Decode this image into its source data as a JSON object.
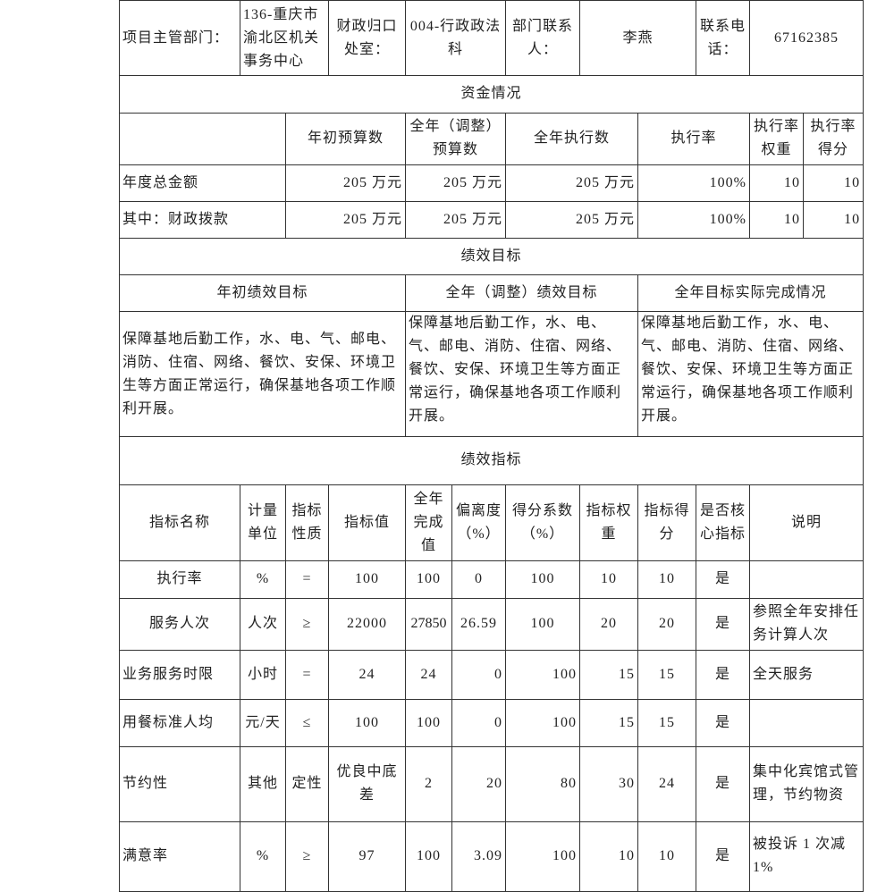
{
  "header": {
    "dept_label": "项目主管部门：",
    "dept_value": "136-重庆市渝北区机关事务中心",
    "finance_label": "财政归口处室：",
    "finance_value": "004-行政政法科",
    "contact_label": "部门联系人：",
    "contact_value": "李燕",
    "phone_label": "联系电话：",
    "phone_value": "67162385"
  },
  "funds": {
    "title": "资金情况",
    "columns": [
      "",
      "年初预算数",
      "全年（调整）预算数",
      "全年执行数",
      "执行率",
      "执行率权重",
      "执行率得分"
    ],
    "rows": [
      [
        "年度总金额",
        "205 万元",
        "205 万元",
        "205 万元",
        "100%",
        "10",
        "10"
      ],
      [
        "其中：财政拨款",
        "205 万元",
        "205 万元",
        "205 万元",
        "100%",
        "10",
        "10"
      ]
    ]
  },
  "goals": {
    "title": "绩效目标",
    "columns": [
      "年初绩效目标",
      "全年（调整）绩效目标",
      "全年目标实际完成情况"
    ],
    "values": [
      "保障基地后勤工作，水、电、气、邮电、消防、住宿、网络、餐饮、安保、环境卫生等方面正常运行，确保基地各项工作顺利开展。",
      "保障基地后勤工作，水、电、气、邮电、消防、住宿、网络、餐饮、安保、环境卫生等方面正常运行，确保基地各项工作顺利开展。",
      "保障基地后勤工作，水、电、气、邮电、消防、住宿、网络、餐饮、安保、环境卫生等方面正常运行，确保基地各项工作顺利开展。"
    ]
  },
  "indicators": {
    "title": "绩效指标",
    "columns": [
      "指标名称",
      "计量单位",
      "指标性质",
      "指标值",
      "全年完成值",
      "偏离度（%）",
      "得分系数（%）",
      "指标权重",
      "指标得分",
      "是否核心指标",
      "说明"
    ],
    "rows": [
      [
        "执行率",
        "%",
        "=",
        "100",
        "100",
        "0",
        "100",
        "10",
        "10",
        "是",
        ""
      ],
      [
        "服务人次",
        "人次",
        "≥",
        "22000",
        "27850",
        "26.59",
        "100",
        "20",
        "20",
        "是",
        "参照全年安排任务计算人次"
      ],
      [
        "业务服务时限",
        "小时",
        "=",
        "24",
        "24",
        "0",
        "100",
        "15",
        "15",
        "是",
        "全天服务"
      ],
      [
        "用餐标准人均",
        "元/天",
        "≤",
        "100",
        "100",
        "0",
        "100",
        "15",
        "15",
        "是",
        ""
      ],
      [
        "节约性",
        "其他",
        "定性",
        "优良中底差",
        "2",
        "20",
        "80",
        "30",
        "24",
        "是",
        "集中化宾馆式管理，节约物资"
      ],
      [
        "满意率",
        "%",
        "≥",
        "97",
        "100",
        "3.09",
        "100",
        "10",
        "10",
        "是",
        "被投诉 1 次减1%"
      ]
    ]
  }
}
